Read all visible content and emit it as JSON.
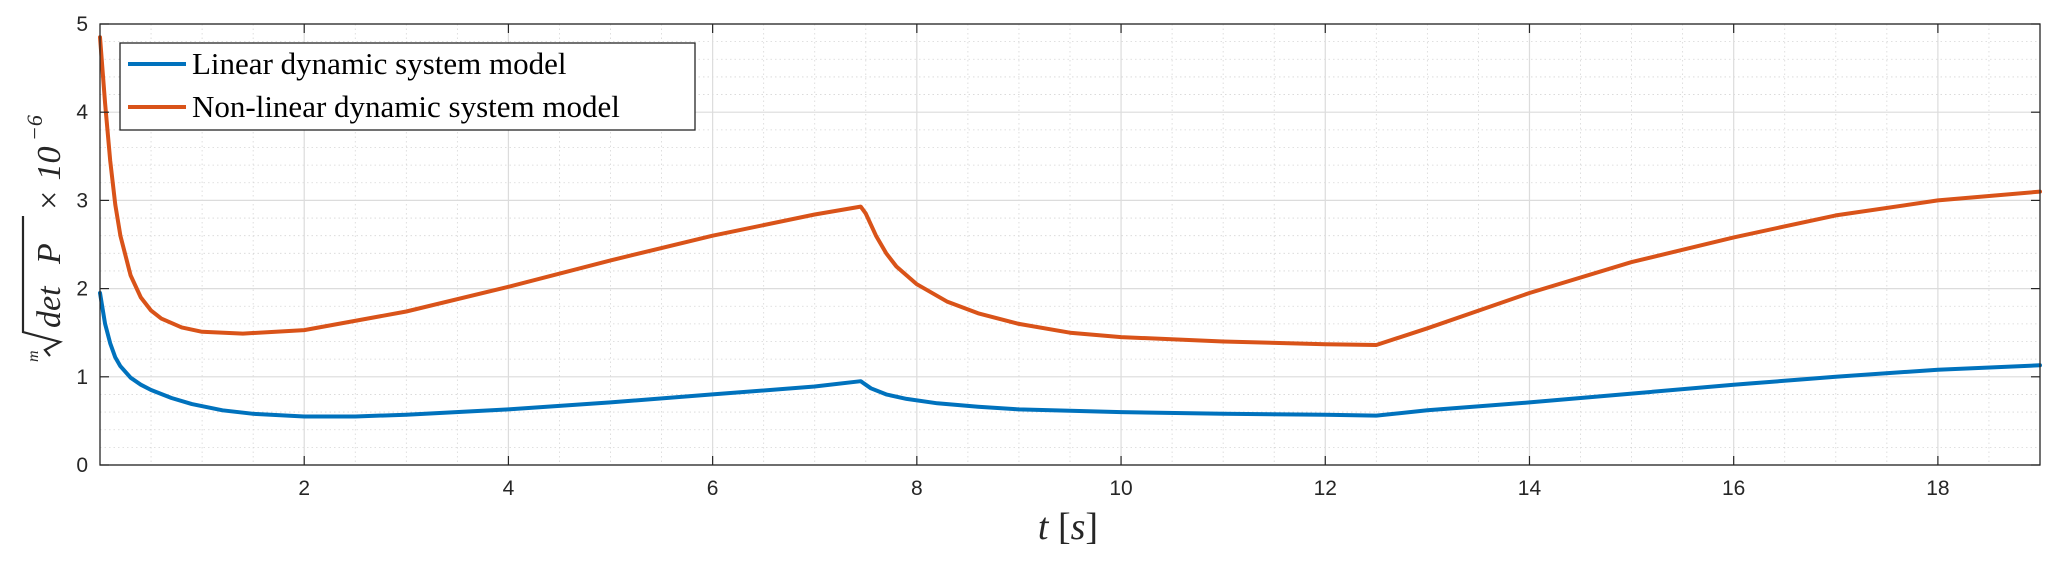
{
  "chart_data": {
    "type": "line",
    "xlabel": "t [s]",
    "ylabel": "m√(det P) × 10⁻⁶",
    "xlim": [
      0,
      19
    ],
    "ylim": [
      0,
      5
    ],
    "xticks": [
      "2",
      "4",
      "6",
      "8",
      "10",
      "12",
      "14",
      "16",
      "18"
    ],
    "yticks": [
      "0",
      "1",
      "2",
      "3",
      "4",
      "5"
    ],
    "grid": true,
    "minor_grid": true,
    "legend_position": "top-left",
    "series": [
      {
        "name": "Linear dynamic system model",
        "color": "#0072BD",
        "x": [
          0,
          0.05,
          0.1,
          0.15,
          0.2,
          0.3,
          0.4,
          0.5,
          0.7,
          0.9,
          1.2,
          1.5,
          2.0,
          2.5,
          3.0,
          4.0,
          5.0,
          6.0,
          7.0,
          7.45,
          7.55,
          7.7,
          7.9,
          8.2,
          8.6,
          9.0,
          10.0,
          11.0,
          12.0,
          12.5,
          13.0,
          14.0,
          15.0,
          16.0,
          17.0,
          18.0,
          19.0
        ],
        "y": [
          1.95,
          1.6,
          1.38,
          1.22,
          1.12,
          0.99,
          0.91,
          0.85,
          0.76,
          0.69,
          0.62,
          0.58,
          0.55,
          0.55,
          0.57,
          0.63,
          0.71,
          0.8,
          0.89,
          0.95,
          0.87,
          0.8,
          0.75,
          0.7,
          0.66,
          0.63,
          0.6,
          0.58,
          0.57,
          0.56,
          0.62,
          0.71,
          0.81,
          0.91,
          1.0,
          1.08,
          1.13
        ]
      },
      {
        "name": "Non-linear dynamic system model",
        "color": "#D95319",
        "x": [
          0,
          0.05,
          0.1,
          0.15,
          0.2,
          0.3,
          0.4,
          0.5,
          0.6,
          0.8,
          1.0,
          1.4,
          2.0,
          3.0,
          4.0,
          5.0,
          6.0,
          7.0,
          7.45,
          7.5,
          7.6,
          7.7,
          7.8,
          8.0,
          8.3,
          8.6,
          9.0,
          9.5,
          10.0,
          11.0,
          12.0,
          12.5,
          13.0,
          14.0,
          15.0,
          16.0,
          17.0,
          18.0,
          19.0
        ],
        "y": [
          4.85,
          4.1,
          3.45,
          2.95,
          2.6,
          2.15,
          1.9,
          1.75,
          1.66,
          1.56,
          1.51,
          1.49,
          1.53,
          1.74,
          2.02,
          2.32,
          2.6,
          2.84,
          2.93,
          2.85,
          2.6,
          2.4,
          2.25,
          2.05,
          1.85,
          1.72,
          1.6,
          1.5,
          1.45,
          1.4,
          1.37,
          1.36,
          1.55,
          1.95,
          2.3,
          2.58,
          2.83,
          3.0,
          3.1
        ]
      }
    ]
  }
}
